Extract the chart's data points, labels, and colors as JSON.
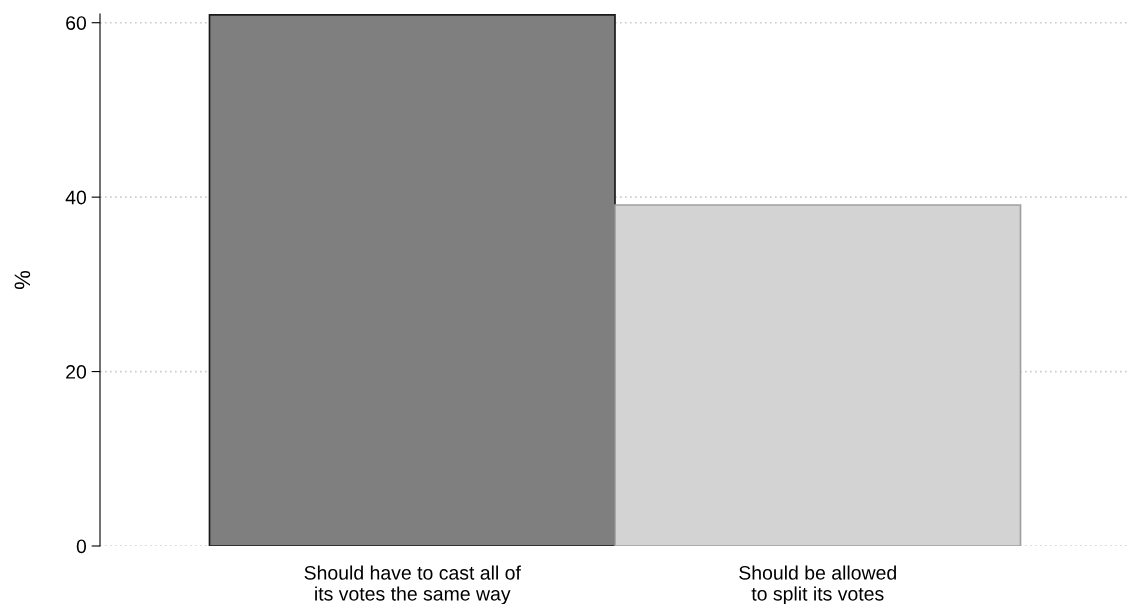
{
  "chart_data": {
    "type": "bar",
    "ylabel": "%",
    "categories": [
      "Should have to cast all of\nits votes the same way",
      "Should be allowed\nto split its votes"
    ],
    "values": [
      60.9,
      39.1
    ],
    "colors": [
      "#7f7f7f",
      "#d3d3d3"
    ],
    "ylim": [
      0,
      61
    ],
    "yticks": [
      0,
      20,
      40,
      60
    ],
    "grid": "y"
  }
}
